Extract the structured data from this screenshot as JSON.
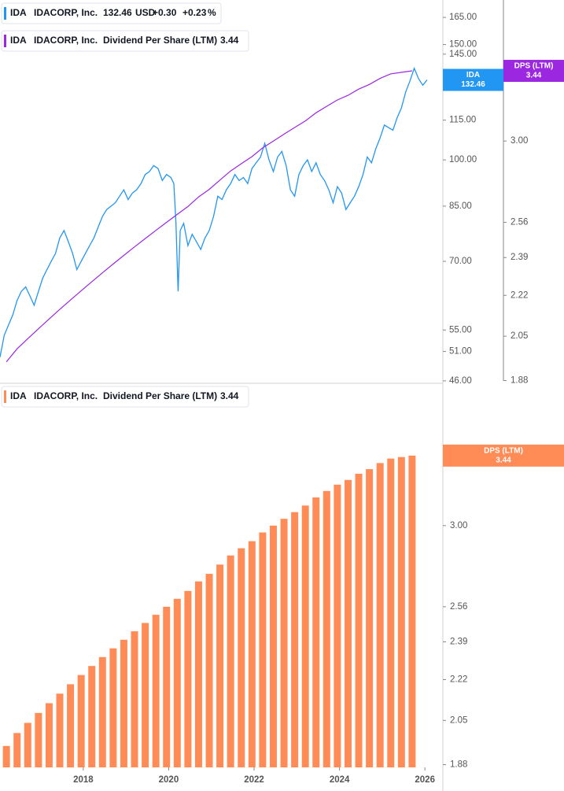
{
  "chart_data": [
    {
      "type": "line",
      "xlim": [
        2016.05,
        2026.42
      ],
      "ylim": [
        45.6,
        175.4
      ],
      "log_y": true,
      "yticks": [
        {
          "value": 165,
          "label": "165.00"
        },
        {
          "value": 150,
          "label": "150.00"
        },
        {
          "value": 145,
          "label": "145.00"
        },
        {
          "value": 115,
          "label": "115.00"
        },
        {
          "value": 100,
          "label": "100.00"
        },
        {
          "value": 85,
          "label": "85.00"
        },
        {
          "value": 70,
          "label": "70.00"
        },
        {
          "value": 55,
          "label": "55.00"
        },
        {
          "value": 51,
          "label": "51.00"
        },
        {
          "value": 46,
          "label": "46.00"
        }
      ],
      "y2lim": [
        1.87,
        3.95
      ],
      "y2ticks": [
        {
          "value": 3,
          "label": "3.00"
        },
        2.56,
        2.39,
        2.22,
        2.05,
        1.88
      ],
      "series": [
        {
          "symbol": "IDA",
          "name": "IDACORP, Inc.",
          "color": "#2196f3",
          "last": 132.46,
          "currency": "USD",
          "change": "+0.30",
          "change_pct": "+0.23",
          "pct_sign": "%",
          "x": [
            2016.05,
            2016.15,
            2016.25,
            2016.35,
            2016.45,
            2016.55,
            2016.65,
            2016.75,
            2016.85,
            2016.95,
            2017.05,
            2017.15,
            2017.25,
            2017.35,
            2017.45,
            2017.55,
            2017.65,
            2017.75,
            2017.85,
            2017.95,
            2018.05,
            2018.15,
            2018.25,
            2018.35,
            2018.45,
            2018.55,
            2018.65,
            2018.75,
            2018.85,
            2018.95,
            2019.05,
            2019.15,
            2019.25,
            2019.35,
            2019.45,
            2019.55,
            2019.65,
            2019.75,
            2019.85,
            2019.95,
            2020.05,
            2020.12,
            2020.17,
            2020.22,
            2020.27,
            2020.35,
            2020.45,
            2020.55,
            2020.65,
            2020.75,
            2020.85,
            2020.95,
            2021.05,
            2021.15,
            2021.25,
            2021.35,
            2021.45,
            2021.55,
            2021.65,
            2021.75,
            2021.85,
            2021.95,
            2022.05,
            2022.15,
            2022.25,
            2022.35,
            2022.45,
            2022.55,
            2022.65,
            2022.75,
            2022.85,
            2022.95,
            2023.05,
            2023.15,
            2023.25,
            2023.35,
            2023.45,
            2023.55,
            2023.65,
            2023.75,
            2023.85,
            2023.95,
            2024.05,
            2024.15,
            2024.25,
            2024.35,
            2024.45,
            2024.55,
            2024.65,
            2024.75,
            2024.85,
            2024.95,
            2025.05,
            2025.15,
            2025.25,
            2025.35,
            2025.45,
            2025.55,
            2025.65,
            2025.75,
            2025.85,
            2025.95,
            2026.05
          ],
          "values": [
            50,
            54,
            56,
            58,
            61,
            63,
            64,
            62,
            60,
            63,
            66,
            68,
            70,
            72,
            76,
            78,
            75,
            72,
            68,
            70,
            72,
            74,
            76,
            79,
            82,
            84,
            85,
            86,
            88,
            90,
            87,
            89,
            90,
            92,
            95,
            96,
            98,
            97,
            93,
            95,
            94,
            92,
            80,
            63,
            78,
            80,
            74,
            77,
            75,
            73,
            76,
            78,
            82,
            88,
            87,
            90,
            92,
            95,
            93,
            94,
            92,
            97,
            99,
            101,
            106,
            100,
            96,
            101,
            103,
            98,
            90,
            88,
            95,
            98,
            100,
            96,
            99,
            95,
            93,
            90,
            86,
            91,
            89,
            84,
            86,
            88,
            91,
            95,
            101,
            99,
            104,
            108,
            113,
            112,
            111,
            116,
            120,
            127,
            132,
            138,
            133,
            130,
            132.46
          ]
        },
        {
          "symbol": "IDA",
          "company": "IDACORP, Inc.",
          "name": "Dividend Per Share (LTM)",
          "tag": "DPS (LTM)",
          "color": "#9c27e0",
          "axis": "y2",
          "last": 3.44,
          "x": [
            2016.2,
            2016.45,
            2016.7,
            2016.95,
            2017.2,
            2017.45,
            2017.7,
            2017.95,
            2018.2,
            2018.45,
            2018.7,
            2018.95,
            2019.2,
            2019.45,
            2019.7,
            2019.95,
            2020.2,
            2020.45,
            2020.7,
            2020.95,
            2021.2,
            2021.45,
            2021.7,
            2021.95,
            2022.2,
            2022.45,
            2022.7,
            2022.95,
            2023.2,
            2023.45,
            2023.7,
            2023.95,
            2024.2,
            2024.45,
            2024.7,
            2024.95,
            2025.2,
            2025.45,
            2025.7
          ],
          "values": [
            1.95,
            2.0,
            2.04,
            2.08,
            2.12,
            2.16,
            2.2,
            2.24,
            2.28,
            2.32,
            2.36,
            2.4,
            2.44,
            2.48,
            2.52,
            2.56,
            2.6,
            2.64,
            2.69,
            2.73,
            2.78,
            2.83,
            2.87,
            2.91,
            2.96,
            3.0,
            3.04,
            3.08,
            3.12,
            3.17,
            3.21,
            3.25,
            3.28,
            3.32,
            3.35,
            3.39,
            3.42,
            3.43,
            3.44
          ]
        }
      ]
    },
    {
      "type": "bar",
      "xlim": [
        2016.05,
        2026.42
      ],
      "xticks": [
        2018,
        2020,
        2022,
        2024,
        2026
      ],
      "ylim": [
        1.87,
        3.95
      ],
      "log_y": true,
      "yticks": [
        {
          "value": 3,
          "label": "3.00"
        },
        2.56,
        2.39,
        2.22,
        2.05,
        1.88
      ],
      "x": [
        2016.2,
        2016.45,
        2016.7,
        2016.95,
        2017.2,
        2017.45,
        2017.7,
        2017.95,
        2018.2,
        2018.45,
        2018.7,
        2018.95,
        2019.2,
        2019.45,
        2019.7,
        2019.95,
        2020.2,
        2020.45,
        2020.7,
        2020.95,
        2021.2,
        2021.45,
        2021.7,
        2021.95,
        2022.2,
        2022.45,
        2022.7,
        2022.95,
        2023.2,
        2023.45,
        2023.7,
        2023.95,
        2024.2,
        2024.45,
        2024.7,
        2024.95,
        2025.2,
        2025.45,
        2025.7
      ],
      "series": [
        {
          "symbol": "IDA",
          "company": "IDACORP, Inc.",
          "name": "Dividend Per Share (LTM)",
          "tag": "DPS (LTM)",
          "color": "#ff8c57",
          "last": 3.44,
          "values": [
            1.95,
            2.0,
            2.04,
            2.08,
            2.12,
            2.16,
            2.2,
            2.24,
            2.28,
            2.32,
            2.36,
            2.4,
            2.44,
            2.48,
            2.52,
            2.56,
            2.6,
            2.64,
            2.69,
            2.73,
            2.78,
            2.83,
            2.87,
            2.91,
            2.96,
            3.0,
            3.04,
            3.08,
            3.12,
            3.17,
            3.21,
            3.25,
            3.28,
            3.32,
            3.35,
            3.39,
            3.42,
            3.43,
            3.44
          ]
        }
      ]
    }
  ]
}
